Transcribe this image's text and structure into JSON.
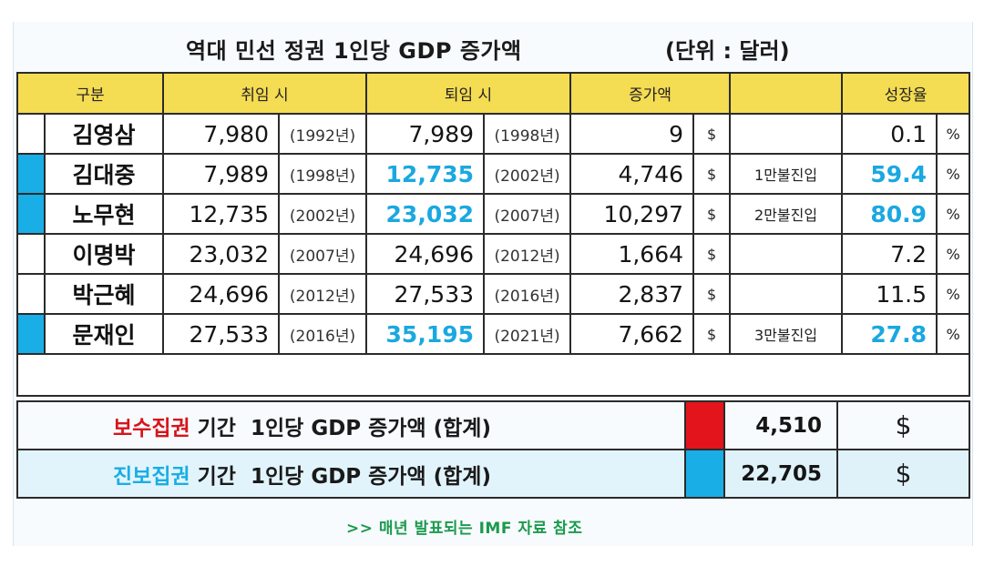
{
  "title": "역대 민선 정권 1인당 GDP 증가액",
  "unit": "(단위 : 달러)",
  "headers": {
    "category": "구분",
    "start": "취임 시",
    "end": "퇴임 시",
    "increase": "증가액",
    "growth": "성장율"
  },
  "rows": [
    {
      "name": "김영삼",
      "camp": "conservative",
      "start": "7,980",
      "start_year": "(1992년)",
      "end": "7,989",
      "end_year": "(1998년)",
      "increase": "9",
      "currency": "$",
      "milestone": "",
      "growth": "0.1",
      "percent": "%",
      "highlight": false
    },
    {
      "name": "김대중",
      "camp": "progressive",
      "start": "7,989",
      "start_year": "(1998년)",
      "end": "12,735",
      "end_year": "(2002년)",
      "increase": "4,746",
      "currency": "$",
      "milestone": "1만불진입",
      "growth": "59.4",
      "percent": "%",
      "highlight": true
    },
    {
      "name": "노무현",
      "camp": "progressive",
      "start": "12,735",
      "start_year": "(2002년)",
      "end": "23,032",
      "end_year": "(2007년)",
      "increase": "10,297",
      "currency": "$",
      "milestone": "2만불진입",
      "growth": "80.9",
      "percent": "%",
      "highlight": true
    },
    {
      "name": "이명박",
      "camp": "conservative",
      "start": "23,032",
      "start_year": "(2007년)",
      "end": "24,696",
      "end_year": "(2012년)",
      "increase": "1,664",
      "currency": "$",
      "milestone": "",
      "growth": "7.2",
      "percent": "%",
      "highlight": false
    },
    {
      "name": "박근혜",
      "camp": "conservative",
      "start": "24,696",
      "start_year": "(2012년)",
      "end": "27,533",
      "end_year": "(2016년)",
      "increase": "2,837",
      "currency": "$",
      "milestone": "",
      "growth": "11.5",
      "percent": "%",
      "highlight": false
    },
    {
      "name": "문재인",
      "camp": "progressive",
      "start": "27,533",
      "start_year": "(2016년)",
      "end": "35,195",
      "end_year": "(2021년)",
      "increase": "7,662",
      "currency": "$",
      "milestone": "3만불진입",
      "growth": "27.8",
      "percent": "%",
      "highlight": true
    }
  ],
  "summary": [
    {
      "camp_label": "보수집권",
      "rest_label": " 기간  1인당 GDP 증가액 (합계)",
      "value": "4,510",
      "currency": "$",
      "camp": "conservative"
    },
    {
      "camp_label": "진보집권",
      "rest_label": " 기간  1인당 GDP 증가액 (합계)",
      "value": "22,705",
      "currency": "$",
      "camp": "progressive"
    }
  ],
  "footnote": ">> 매년 발표되는 IMF 자료 참조",
  "colors": {
    "conservative": "#e3141b",
    "progressive": "#19aee6",
    "header": "#f4dc53",
    "footnote": "#1b9a4c"
  }
}
